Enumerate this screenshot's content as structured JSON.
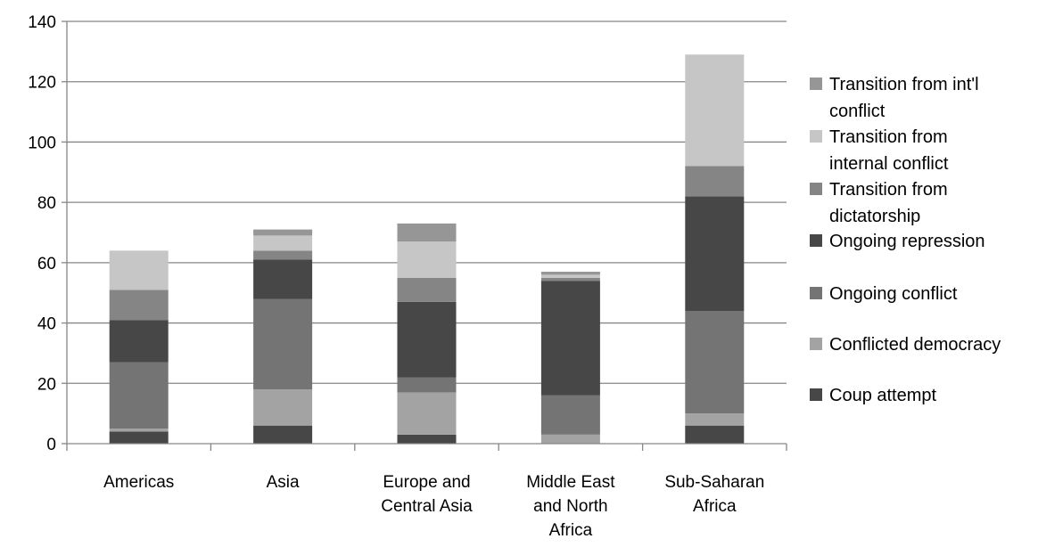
{
  "chart_data": {
    "type": "bar",
    "stacked": true,
    "title": "",
    "xlabel": "",
    "ylabel": "",
    "ylim": [
      0,
      140
    ],
    "yticks": [
      0,
      20,
      40,
      60,
      80,
      100,
      120,
      140
    ],
    "grid": true,
    "legend_position": "right",
    "categories": [
      "Americas",
      "Asia",
      "Europe and Central Asia",
      "Middle East and North Africa",
      "Sub-Saharan Africa"
    ],
    "category_label_lines": [
      [
        "Americas"
      ],
      [
        "Asia"
      ],
      [
        "Europe and",
        "Central Asia"
      ],
      [
        "Middle East",
        "and North",
        "Africa"
      ],
      [
        "Sub-Saharan",
        "Africa"
      ]
    ],
    "series": [
      {
        "name": "Coup attempt",
        "color": "#474747",
        "values": [
          4,
          6,
          3,
          0,
          6
        ]
      },
      {
        "name": "Conflicted democracy",
        "color": "#a3a3a3",
        "values": [
          1,
          12,
          14,
          3,
          4
        ]
      },
      {
        "name": "Ongoing conflict",
        "color": "#747474",
        "values": [
          22,
          30,
          5,
          13,
          34
        ]
      },
      {
        "name": "Ongoing repression",
        "color": "#474747",
        "values": [
          14,
          13,
          25,
          38,
          38
        ]
      },
      {
        "name": "Transition from dictatorship",
        "color": "#858585",
        "values": [
          10,
          3,
          8,
          1,
          10
        ]
      },
      {
        "name": "Transition from internal conflict",
        "color": "#c6c6c6",
        "values": [
          13,
          5,
          12,
          1,
          37
        ]
      },
      {
        "name": "Transition from int'l conflict",
        "color": "#969696",
        "values": [
          0,
          2,
          6,
          1,
          0
        ]
      }
    ],
    "legend_entries": [
      {
        "lines": [
          "Transition from int'l",
          "conflict"
        ],
        "color": "#969696"
      },
      {
        "lines": [
          "Transition from",
          "internal conflict"
        ],
        "color": "#c6c6c6"
      },
      {
        "lines": [
          "Transition from",
          "dictatorship"
        ],
        "color": "#858585"
      },
      {
        "lines": [
          "Ongoing repression"
        ],
        "color": "#474747"
      },
      {
        "lines": [
          "Ongoing conflict"
        ],
        "color": "#747474"
      },
      {
        "lines": [
          "Conflicted democracy"
        ],
        "color": "#a3a3a3"
      },
      {
        "lines": [
          "Coup attempt"
        ],
        "color": "#474747"
      }
    ],
    "axis_color": "#868686",
    "grid_color": "#868686"
  }
}
